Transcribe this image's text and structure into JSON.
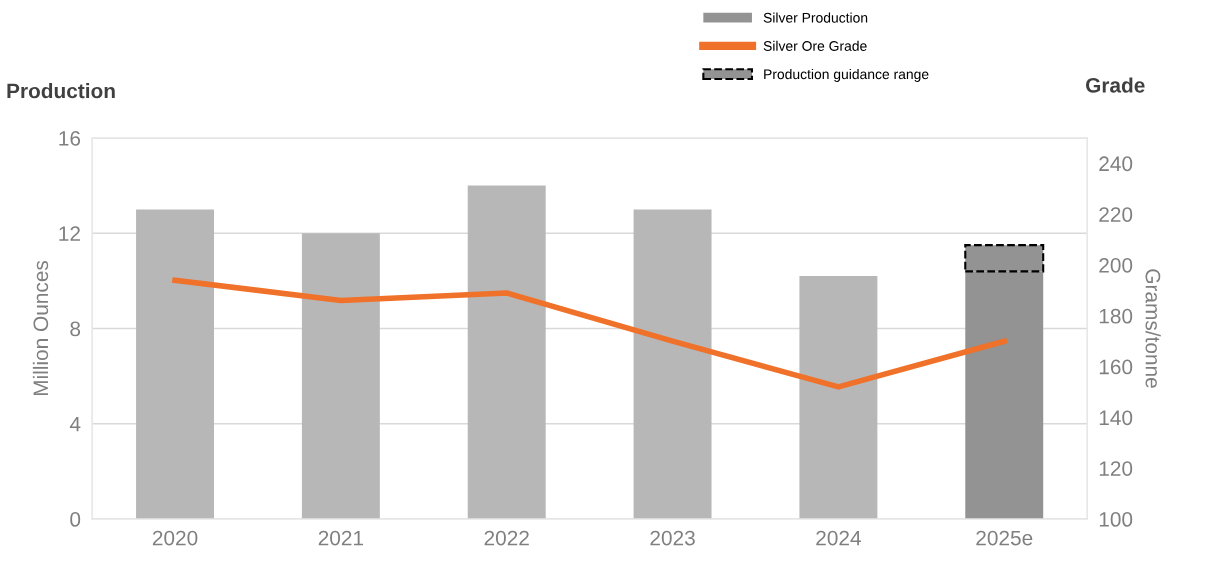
{
  "chart_data": {
    "type": "bar",
    "stacked": true,
    "categories": [
      "2020",
      "2021",
      "2022",
      "2023",
      "2024",
      "2025e"
    ],
    "series": [
      {
        "name": "Silver Production",
        "color": "#939393",
        "colors": [
          "#b7b7b8",
          "#b7b7b8",
          "#b7b7b8",
          "#b7b7b8",
          "#b7b7b8",
          "#939393"
        ],
        "values": [
          13,
          12,
          14,
          13,
          10.2,
          10.4
        ]
      },
      {
        "name": "Production guidance range",
        "color": "#939393",
        "line_style": "dashed",
        "values": [
          null,
          null,
          null,
          null,
          null,
          1.1
        ]
      },
      {
        "name": "Silver Ore Grade",
        "type": "line",
        "axis": "y2",
        "color": "#f07129",
        "values": [
          194,
          186,
          189,
          170,
          152,
          170
        ]
      }
    ],
    "ylabel": "Million Ounces",
    "y2label": "Grams/tonne",
    "ylim": [
      0,
      16
    ],
    "yticks": [
      0,
      4,
      8,
      12,
      16
    ],
    "y2lim": [
      100,
      250
    ],
    "y2ticks": [
      100,
      120,
      140,
      160,
      180,
      200,
      220,
      240
    ],
    "annotations": [
      "Production",
      "Grade"
    ],
    "grid": "y",
    "legend": "top right",
    "marker": "none"
  }
}
